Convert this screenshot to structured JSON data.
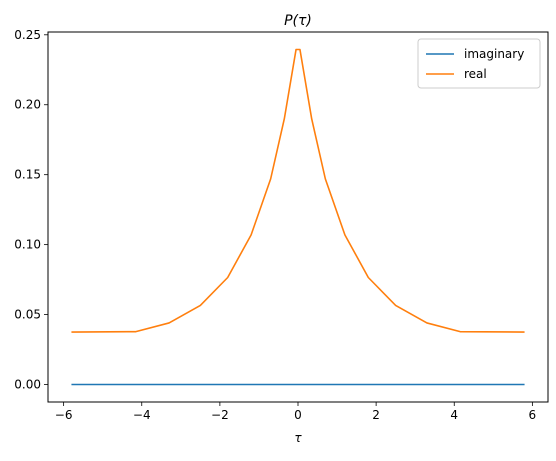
{
  "chart_data": {
    "type": "line",
    "title": "P(τ)",
    "xlabel": "τ",
    "ylabel": "",
    "xlim": [
      -6.4,
      6.4
    ],
    "ylim": [
      -0.0125,
      0.252
    ],
    "xticks": [
      -6,
      -4,
      -2,
      0,
      2,
      4,
      6
    ],
    "xtick_labels": [
      "−6",
      "−4",
      "−2",
      "0",
      "2",
      "4",
      "6"
    ],
    "yticks": [
      0.0,
      0.05,
      0.1,
      0.15,
      0.2,
      0.25
    ],
    "ytick_labels": [
      "0.00",
      "0.05",
      "0.10",
      "0.15",
      "0.20",
      "0.25"
    ],
    "grid": false,
    "legend_position": "top-right",
    "series": [
      {
        "name": "imaginary",
        "color": "#1f77b4",
        "x": [
          -5.8,
          -4.15,
          -3.3,
          -2.5,
          -1.8,
          -1.2,
          -0.7,
          -0.35,
          -0.05,
          0.05,
          0.35,
          0.7,
          1.2,
          1.8,
          2.5,
          3.3,
          4.15,
          5.8
        ],
        "y": [
          0,
          0,
          0,
          0,
          0,
          0,
          0,
          0,
          0,
          0,
          0,
          0,
          0,
          0,
          0,
          0,
          0,
          0
        ]
      },
      {
        "name": "real",
        "color": "#ff7f0e",
        "x": [
          -5.8,
          -4.15,
          -3.3,
          -2.5,
          -1.8,
          -1.2,
          -0.7,
          -0.35,
          -0.05,
          0.05,
          0.35,
          0.7,
          1.2,
          1.8,
          2.5,
          3.3,
          4.15,
          5.8
        ],
        "y": [
          0.0375,
          0.0378,
          0.044,
          0.0565,
          0.0765,
          0.107,
          0.147,
          0.19,
          0.2395,
          0.2395,
          0.19,
          0.147,
          0.107,
          0.0765,
          0.0565,
          0.044,
          0.0378,
          0.0375
        ]
      }
    ]
  }
}
